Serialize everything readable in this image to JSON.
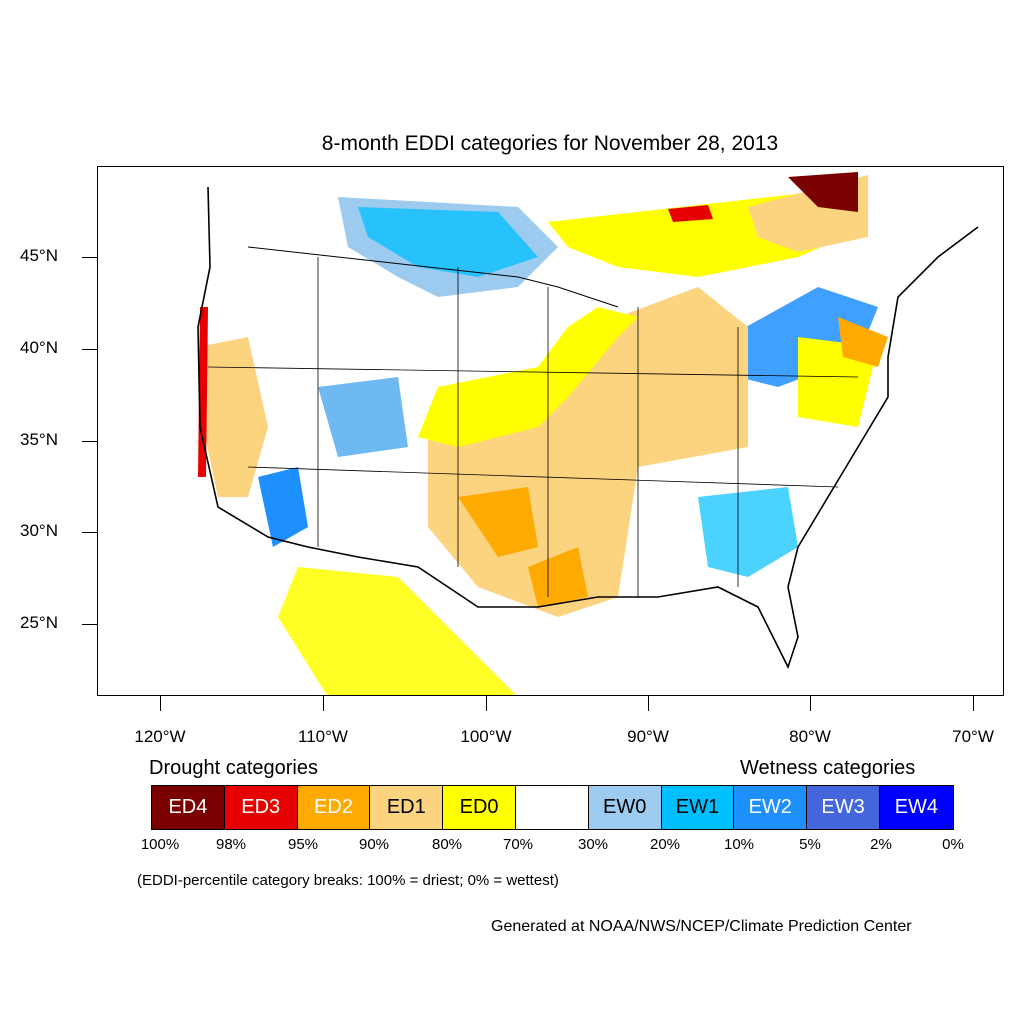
{
  "title": "8-month EDDI categories for November 28, 2013",
  "lat_labels": [
    "45°N",
    "40°N",
    "35°N",
    "30°N",
    "25°N"
  ],
  "lon_labels": [
    "120°W",
    "110°W",
    "100°W",
    "90°W",
    "80°W",
    "70°W"
  ],
  "legend": {
    "drought_heading": "Drought categories",
    "wetness_heading": "Wetness categories",
    "categories": [
      {
        "label": "ED4",
        "color": "#7a0000",
        "text_color": "#ffffff"
      },
      {
        "label": "ED3",
        "color": "#e60000",
        "text_color": "#ffffff"
      },
      {
        "label": "ED2",
        "color": "#ffaa00",
        "text_color": "#ffffff"
      },
      {
        "label": "ED1",
        "color": "#fcd37f",
        "text_color": "#000000"
      },
      {
        "label": "ED0",
        "color": "#ffff00",
        "text_color": "#000000"
      },
      {
        "label": "",
        "color": "#ffffff",
        "text_color": "#000000"
      },
      {
        "label": "EW0",
        "color": "#9ccbef",
        "text_color": "#000000"
      },
      {
        "label": "EW1",
        "color": "#00bfff",
        "text_color": "#000000"
      },
      {
        "label": "EW2",
        "color": "#1e8fff",
        "text_color": "#ffffff"
      },
      {
        "label": "EW3",
        "color": "#4466dd",
        "text_color": "#ffffff"
      },
      {
        "label": "EW4",
        "color": "#0000ff",
        "text_color": "#ffffff"
      }
    ],
    "percentiles": [
      "100%",
      "98%",
      "95%",
      "90%",
      "80%",
      "70%",
      "30%",
      "20%",
      "10%",
      "5%",
      "2%",
      "0%"
    ]
  },
  "note": "(EDDI-percentile category breaks: 100% = driest; 0% = wettest)",
  "credit": "Generated at NOAA/NWS/NCEP/Climate Prediction Center"
}
